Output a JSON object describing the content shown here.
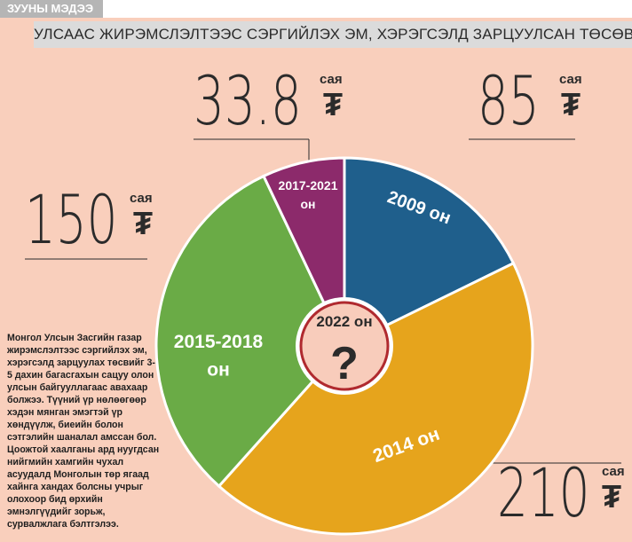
{
  "header": {
    "tag": "ЗУУНЫ МЭДЭЭ",
    "title": "УЛСААС ЖИРЭМСЛЭЛТЭЭС СЭРГИЙЛЭХ ЭМ, ХЭРЭГСЭЛД ЗАРЦУУЛСАН ТӨСӨВ"
  },
  "chart_data": {
    "type": "pie",
    "unit": "сая",
    "currency": "₮",
    "slices": [
      {
        "label": "2009 он",
        "value": 85,
        "value_text": "85",
        "color": "#1f5f8c"
      },
      {
        "label": "2014 он",
        "value": 210,
        "value_text": "210",
        "color": "#e6a41c"
      },
      {
        "label": "2015-2018 он",
        "value": 150,
        "value_text": "150",
        "color": "#6aab46"
      },
      {
        "label": "2017-2021 он",
        "value": 33.8,
        "value_text": "33.8",
        "color": "#8c2a6b"
      }
    ],
    "center": {
      "label": "2022 он",
      "symbol": "?"
    }
  },
  "note": "Монгол Улсын Засгийн газар жирэмслэлтээс сэргийлэх эм, хэрэгсэлд зарцуулах төсвийг 3-5 дахин багасгахын сацуу олон улсын байгууллагаас авахаар болжээ. Түүний үр нөлөөгөөр хэдэн мянган эмэгтэй үр хөндүүлж, биеийн болон сэтгэлийн шаналал амссан бол. Цоожтой хаалганы ард нуугдсан нийгмийн хамгийн чухал асуудалд Монголын төр ягаад хайнга хандах болсны учрыг олохоор бид өрхийн эмнэлгүүдийг зорьж, сурвалжлага бэлтгэлээ."
}
